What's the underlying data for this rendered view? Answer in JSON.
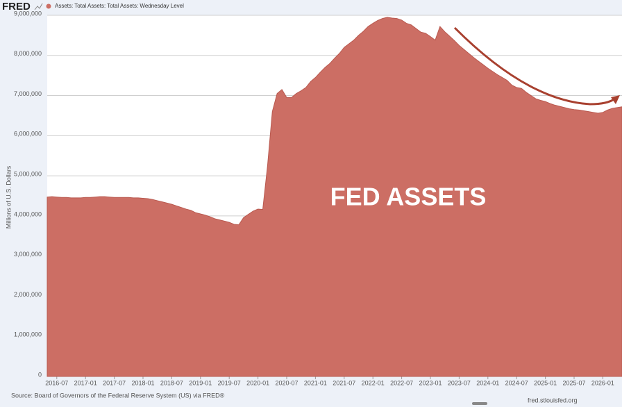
{
  "chart_data": {
    "type": "area",
    "logo": "FRED",
    "y_label": "Millions of U.S. Dollars",
    "annotation": "FED ASSETS",
    "source": "Source: Board of Governors of the Federal Reserve System (US) via FRED®",
    "site": "fred.stlouisfed.org",
    "grid": true,
    "x": [
      "2016-05",
      "2016-06",
      "2016-07",
      "2016-08",
      "2016-09",
      "2016-10",
      "2016-11",
      "2016-12",
      "2017-01",
      "2017-02",
      "2017-03",
      "2017-04",
      "2017-05",
      "2017-06",
      "2017-07",
      "2017-08",
      "2017-09",
      "2017-10",
      "2017-11",
      "2017-12",
      "2018-01",
      "2018-02",
      "2018-03",
      "2018-04",
      "2018-05",
      "2018-06",
      "2018-07",
      "2018-08",
      "2018-09",
      "2018-10",
      "2018-11",
      "2018-12",
      "2019-01",
      "2019-02",
      "2019-03",
      "2019-04",
      "2019-05",
      "2019-06",
      "2019-07",
      "2019-08",
      "2019-09",
      "2019-10",
      "2019-11",
      "2019-12",
      "2020-01",
      "2020-02",
      "2020-03",
      "2020-04",
      "2020-05",
      "2020-06",
      "2020-07",
      "2020-08",
      "2020-09",
      "2020-10",
      "2020-11",
      "2020-12",
      "2021-01",
      "2021-02",
      "2021-03",
      "2021-04",
      "2021-05",
      "2021-06",
      "2021-07",
      "2021-08",
      "2021-09",
      "2021-10",
      "2021-11",
      "2021-12",
      "2022-01",
      "2022-02",
      "2022-03",
      "2022-04",
      "2022-05",
      "2022-06",
      "2022-07",
      "2022-08",
      "2022-09",
      "2022-10",
      "2022-11",
      "2022-12",
      "2023-01",
      "2023-02",
      "2023-03",
      "2023-04",
      "2023-05",
      "2023-06",
      "2023-07",
      "2023-08",
      "2023-09",
      "2023-10",
      "2023-11",
      "2023-12",
      "2024-01",
      "2024-02",
      "2024-03",
      "2024-04",
      "2024-05",
      "2024-06",
      "2024-07",
      "2024-08",
      "2024-09",
      "2024-10",
      "2024-11",
      "2024-12",
      "2025-01",
      "2025-02",
      "2025-03",
      "2025-04",
      "2025-05",
      "2025-06",
      "2025-07",
      "2025-08",
      "2025-09",
      "2025-10",
      "2025-11",
      "2025-12",
      "2026-01",
      "2026-02",
      "2026-03",
      "2026-04",
      "2026-05"
    ],
    "series": [
      {
        "name": "Assets: Total Assets: Total Assets: Wednesday Level",
        "color": "#cc6e64",
        "values": [
          4470000,
          4480000,
          4470000,
          4460000,
          4460000,
          4450000,
          4450000,
          4450000,
          4460000,
          4460000,
          4470000,
          4480000,
          4480000,
          4470000,
          4460000,
          4460000,
          4460000,
          4460000,
          4450000,
          4450000,
          4440000,
          4430000,
          4410000,
          4380000,
          4350000,
          4320000,
          4290000,
          4250000,
          4210000,
          4170000,
          4140000,
          4080000,
          4050000,
          4020000,
          3980000,
          3930000,
          3900000,
          3870000,
          3840000,
          3790000,
          3780000,
          3960000,
          4040000,
          4120000,
          4170000,
          4160000,
          5250000,
          6600000,
          7050000,
          7150000,
          6950000,
          6950000,
          7050000,
          7120000,
          7200000,
          7350000,
          7450000,
          7580000,
          7700000,
          7800000,
          7930000,
          8050000,
          8200000,
          8290000,
          8380000,
          8500000,
          8600000,
          8720000,
          8800000,
          8870000,
          8920000,
          8950000,
          8930000,
          8920000,
          8880000,
          8800000,
          8760000,
          8670000,
          8580000,
          8550000,
          8470000,
          8380000,
          8720000,
          8590000,
          8480000,
          8370000,
          8250000,
          8150000,
          8050000,
          7950000,
          7860000,
          7770000,
          7680000,
          7600000,
          7520000,
          7450000,
          7380000,
          7260000,
          7200000,
          7180000,
          7080000,
          7000000,
          6920000,
          6880000,
          6850000,
          6800000,
          6760000,
          6730000,
          6700000,
          6670000,
          6650000,
          6640000,
          6620000,
          6600000,
          6580000,
          6560000,
          6580000,
          6640000,
          6680000,
          6700000,
          6720000
        ]
      }
    ],
    "xlim": [
      "2016-05",
      "2026-05"
    ],
    "xticks": [
      "2016-07",
      "2017-01",
      "2017-07",
      "2018-01",
      "2018-07",
      "2019-01",
      "2019-07",
      "2020-01",
      "2020-07",
      "2021-01",
      "2021-07",
      "2022-01",
      "2022-07",
      "2023-01",
      "2023-07",
      "2024-01",
      "2024-07",
      "2025-01",
      "2025-07",
      "2026-01"
    ],
    "ylim": [
      0,
      9000000
    ],
    "yticks": [
      0,
      {
        "value": 1000000,
        "label": "1,000,000"
      },
      {
        "value": 2000000,
        "label": "2,000,000"
      },
      {
        "value": 3000000,
        "label": "3,000,000"
      },
      {
        "value": 4000000,
        "label": "4,000,000"
      },
      {
        "value": 5000000,
        "label": "5,000,000"
      },
      {
        "value": 6000000,
        "label": "6,000,000"
      },
      {
        "value": 7000000,
        "label": "7,000,000"
      },
      {
        "value": 8000000,
        "label": "8,000,000"
      },
      {
        "value": 9000000,
        "label": "9,000,000"
      }
    ]
  }
}
